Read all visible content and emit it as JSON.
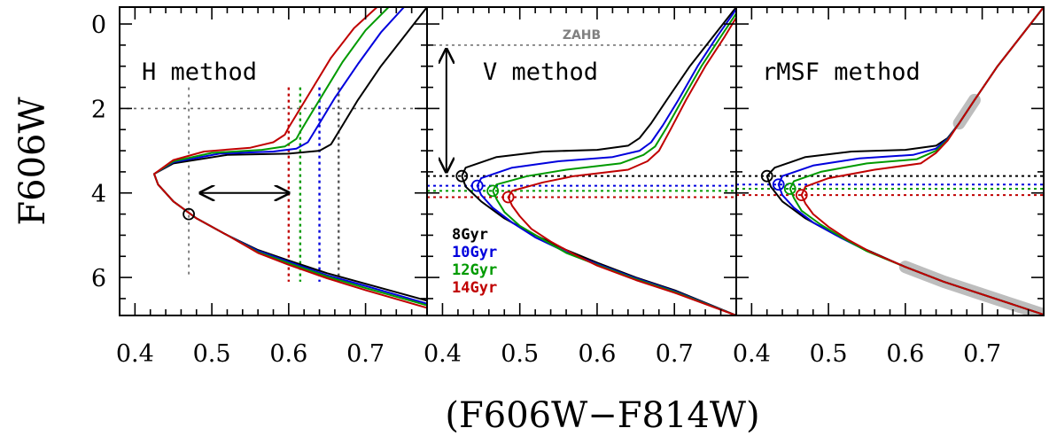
{
  "chart_data": [
    {
      "type": "line",
      "panel": "left",
      "title": "H method",
      "xlabel": "(F606W−F814W)",
      "ylabel": "F606W",
      "xlim": [
        0.38,
        0.78
      ],
      "ylim": [
        6.9,
        -0.4
      ],
      "y_inverted": true,
      "x_ticks": [
        0.4,
        0.5,
        0.6,
        0.7
      ],
      "x_tick_labels": [
        "0.4",
        "0.5",
        "0.6",
        "0.7"
      ],
      "y_ticks": [
        0,
        2,
        4,
        6
      ],
      "y_tick_labels": [
        "0",
        "2",
        "4",
        "6"
      ],
      "series": [
        {
          "name": "8Gyr",
          "color": "#000000",
          "x": [
            0.78,
            0.75,
            0.72,
            0.69,
            0.67,
            0.66,
            0.655,
            0.64,
            0.6,
            0.52,
            0.45,
            0.425,
            0.43,
            0.45,
            0.48,
            0.52,
            0.56,
            0.6,
            0.65,
            0.7,
            0.78
          ],
          "y": [
            -0.4,
            0.3,
            1.0,
            1.8,
            2.4,
            2.7,
            2.85,
            3.0,
            3.07,
            3.1,
            3.3,
            3.55,
            3.8,
            4.2,
            4.6,
            5.0,
            5.35,
            5.6,
            5.9,
            6.15,
            6.55
          ]
        },
        {
          "name": "10Gyr",
          "color": "#0000dd",
          "x": [
            0.75,
            0.72,
            0.69,
            0.66,
            0.64,
            0.63,
            0.625,
            0.61,
            0.58,
            0.51,
            0.45,
            0.425,
            0.43,
            0.45,
            0.48,
            0.52,
            0.56,
            0.6,
            0.65,
            0.7,
            0.78
          ],
          "y": [
            -0.4,
            0.2,
            0.95,
            1.75,
            2.35,
            2.65,
            2.8,
            2.95,
            3.02,
            3.07,
            3.27,
            3.55,
            3.8,
            4.2,
            4.6,
            5.0,
            5.37,
            5.63,
            5.95,
            6.2,
            6.62
          ]
        },
        {
          "name": "12Gyr",
          "color": "#009a00",
          "x": [
            0.73,
            0.7,
            0.67,
            0.645,
            0.625,
            0.615,
            0.61,
            0.595,
            0.565,
            0.5,
            0.45,
            0.425,
            0.43,
            0.45,
            0.48,
            0.52,
            0.56,
            0.6,
            0.65,
            0.7,
            0.78
          ],
          "y": [
            -0.4,
            0.15,
            0.9,
            1.65,
            2.25,
            2.55,
            2.72,
            2.9,
            2.98,
            3.05,
            3.25,
            3.55,
            3.8,
            4.2,
            4.6,
            5.0,
            5.4,
            5.66,
            5.98,
            6.25,
            6.66
          ]
        },
        {
          "name": "14Gyr",
          "color": "#c00000",
          "x": [
            0.715,
            0.685,
            0.655,
            0.63,
            0.61,
            0.6,
            0.595,
            0.58,
            0.55,
            0.49,
            0.45,
            0.425,
            0.43,
            0.45,
            0.48,
            0.52,
            0.56,
            0.6,
            0.65,
            0.7,
            0.78
          ],
          "y": [
            -0.4,
            0.1,
            0.8,
            1.55,
            2.15,
            2.45,
            2.62,
            2.8,
            2.93,
            3.02,
            3.22,
            3.55,
            3.8,
            4.2,
            4.6,
            5.0,
            5.42,
            5.7,
            6.02,
            6.3,
            6.72
          ]
        }
      ]
    },
    {
      "type": "line",
      "panel": "middle",
      "title": "V method",
      "annotation": "ZAHB",
      "xlim": [
        0.38,
        0.78
      ],
      "ylim": [
        6.9,
        -0.4
      ],
      "x_ticks": [
        0.4,
        0.5,
        0.6,
        0.7
      ],
      "x_tick_labels": [
        "0.4",
        "0.5",
        "0.6",
        "0.7"
      ],
      "zahb_level": 0.5,
      "turnoffs": [
        {
          "name": "8Gyr",
          "x": 0.425,
          "y": 3.6
        },
        {
          "name": "10Gyr",
          "x": 0.445,
          "y": 3.83
        },
        {
          "name": "12Gyr",
          "x": 0.465,
          "y": 3.95
        },
        {
          "name": "14Gyr",
          "x": 0.485,
          "y": 4.1
        }
      ],
      "legend": [
        "8Gyr",
        "10Gyr",
        "12Gyr",
        "14Gyr"
      ],
      "series": [
        {
          "name": "8Gyr",
          "color": "#000000",
          "x": [
            0.78,
            0.75,
            0.72,
            0.69,
            0.67,
            0.655,
            0.64,
            0.6,
            0.53,
            0.47,
            0.43,
            0.425,
            0.43,
            0.45,
            0.48,
            0.52,
            0.56,
            0.6,
            0.65,
            0.7,
            0.78
          ],
          "y": [
            -0.4,
            0.3,
            1.0,
            1.8,
            2.35,
            2.7,
            2.88,
            2.98,
            3.02,
            3.15,
            3.4,
            3.6,
            3.85,
            4.2,
            4.6,
            5.0,
            5.35,
            5.65,
            6.0,
            6.3,
            6.9
          ]
        },
        {
          "name": "10Gyr",
          "color": "#0000dd",
          "x": [
            0.78,
            0.755,
            0.73,
            0.705,
            0.685,
            0.67,
            0.655,
            0.62,
            0.55,
            0.49,
            0.45,
            0.445,
            0.45,
            0.465,
            0.49,
            0.52,
            0.56,
            0.6,
            0.65,
            0.7,
            0.78
          ],
          "y": [
            -0.35,
            0.3,
            1.0,
            1.8,
            2.4,
            2.8,
            3.0,
            3.15,
            3.25,
            3.4,
            3.65,
            3.83,
            4.05,
            4.35,
            4.7,
            5.05,
            5.4,
            5.68,
            6.02,
            6.32,
            6.9
          ]
        },
        {
          "name": "12Gyr",
          "color": "#009a00",
          "x": [
            0.78,
            0.76,
            0.735,
            0.71,
            0.69,
            0.675,
            0.66,
            0.63,
            0.56,
            0.51,
            0.47,
            0.465,
            0.47,
            0.48,
            0.5,
            0.53,
            0.56,
            0.6,
            0.65,
            0.7,
            0.78
          ],
          "y": [
            -0.25,
            0.3,
            1.0,
            1.8,
            2.45,
            2.9,
            3.1,
            3.3,
            3.45,
            3.6,
            3.8,
            3.95,
            4.15,
            4.45,
            4.78,
            5.1,
            5.42,
            5.7,
            6.04,
            6.34,
            6.9
          ]
        },
        {
          "name": "14Gyr",
          "color": "#c00000",
          "x": [
            0.78,
            0.765,
            0.74,
            0.715,
            0.695,
            0.68,
            0.665,
            0.64,
            0.57,
            0.53,
            0.49,
            0.485,
            0.49,
            0.5,
            0.515,
            0.54,
            0.57,
            0.6,
            0.65,
            0.7,
            0.78
          ],
          "y": [
            -0.15,
            0.3,
            1.0,
            1.8,
            2.5,
            3.0,
            3.25,
            3.45,
            3.6,
            3.75,
            3.95,
            4.1,
            4.3,
            4.55,
            4.85,
            5.15,
            5.45,
            5.72,
            6.06,
            6.36,
            6.9
          ]
        }
      ]
    },
    {
      "type": "line",
      "panel": "right",
      "title": "rMSF method",
      "xlim": [
        0.38,
        0.78
      ],
      "ylim": [
        6.9,
        -0.4
      ],
      "x_ticks": [
        0.4,
        0.5,
        0.6,
        0.7
      ],
      "x_tick_labels": [
        "0.4",
        "0.5",
        "0.6",
        "0.7"
      ],
      "turnoffs": [
        {
          "name": "8Gyr",
          "x": 0.42,
          "y": 3.6
        },
        {
          "name": "10Gyr",
          "x": 0.435,
          "y": 3.8
        },
        {
          "name": "12Gyr",
          "x": 0.45,
          "y": 3.9
        },
        {
          "name": "14Gyr",
          "x": 0.465,
          "y": 4.05
        }
      ],
      "fit_regions": [
        {
          "x": [
            0.645,
            0.68
          ],
          "y": [
            2.6,
            1.5
          ]
        },
        {
          "x": [
            0.57,
            0.78
          ],
          "y": [
            5.6,
            6.9
          ]
        }
      ],
      "series": [
        {
          "name": "8Gyr",
          "color": "#000000",
          "x": [
            0.78,
            0.75,
            0.72,
            0.69,
            0.67,
            0.655,
            0.64,
            0.6,
            0.53,
            0.47,
            0.43,
            0.42,
            0.425,
            0.44,
            0.47,
            0.51,
            0.55,
            0.6,
            0.65,
            0.7,
            0.78
          ],
          "y": [
            -0.4,
            0.3,
            1.0,
            1.8,
            2.35,
            2.7,
            2.88,
            2.98,
            3.02,
            3.15,
            3.4,
            3.6,
            3.85,
            4.2,
            4.6,
            5.0,
            5.35,
            5.75,
            6.1,
            6.4,
            6.88
          ]
        },
        {
          "name": "10Gyr",
          "color": "#0000dd",
          "x": [
            0.78,
            0.75,
            0.72,
            0.69,
            0.67,
            0.655,
            0.64,
            0.61,
            0.54,
            0.48,
            0.44,
            0.435,
            0.44,
            0.455,
            0.48,
            0.515,
            0.55,
            0.6,
            0.65,
            0.7,
            0.78
          ],
          "y": [
            -0.4,
            0.3,
            1.0,
            1.8,
            2.35,
            2.72,
            2.95,
            3.1,
            3.18,
            3.35,
            3.6,
            3.8,
            4.05,
            4.35,
            4.7,
            5.05,
            5.37,
            5.75,
            6.1,
            6.4,
            6.88
          ]
        },
        {
          "name": "12Gyr",
          "color": "#009a00",
          "x": [
            0.78,
            0.75,
            0.72,
            0.69,
            0.67,
            0.655,
            0.64,
            0.615,
            0.55,
            0.49,
            0.455,
            0.45,
            0.455,
            0.465,
            0.49,
            0.52,
            0.55,
            0.6,
            0.65,
            0.7,
            0.78
          ],
          "y": [
            -0.4,
            0.3,
            1.0,
            1.8,
            2.35,
            2.74,
            3.0,
            3.2,
            3.3,
            3.5,
            3.72,
            3.9,
            4.12,
            4.42,
            4.75,
            5.08,
            5.38,
            5.75,
            6.1,
            6.4,
            6.88
          ]
        },
        {
          "name": "14Gyr",
          "color": "#c00000",
          "x": [
            0.78,
            0.75,
            0.72,
            0.69,
            0.67,
            0.655,
            0.64,
            0.62,
            0.56,
            0.5,
            0.47,
            0.465,
            0.47,
            0.48,
            0.5,
            0.525,
            0.555,
            0.6,
            0.65,
            0.7,
            0.78
          ],
          "y": [
            -0.4,
            0.3,
            1.0,
            1.8,
            2.35,
            2.76,
            3.05,
            3.3,
            3.45,
            3.65,
            3.85,
            4.05,
            4.25,
            4.5,
            4.8,
            5.1,
            5.4,
            5.75,
            6.1,
            6.4,
            6.88
          ]
        }
      ]
    }
  ]
}
